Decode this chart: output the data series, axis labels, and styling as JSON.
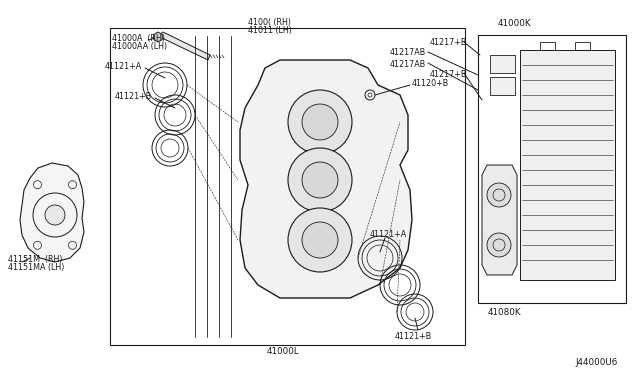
{
  "bg_color": "#ffffff",
  "lc": "#1a1a1a",
  "lw": 0.7,
  "fs": 5.8,
  "diagram_id": "J44000U6",
  "labels": {
    "bolt_rh": "41000A  (RH)",
    "bolt_lh": "41000AA (LH)",
    "caliper_rh": "4100( (RH)",
    "caliper_lh": "41011 (LH)",
    "piston_a_top": "41121+A",
    "piston_b_top": "41121+B",
    "bleeder": "41120+B",
    "piston_a_bot": "41121+A",
    "piston_b_bot": "41121+B",
    "caliper_body": "41000L",
    "shield_rh": "41151M  (RH)",
    "shield_lh": "41151MA (LH)",
    "pad_set": "41000K",
    "shim_ab1": "41217AB",
    "shim_ab2": "41217AB",
    "shim_b1": "41217+B",
    "shim_b2": "41217+B",
    "brake_pad": "41080K"
  }
}
